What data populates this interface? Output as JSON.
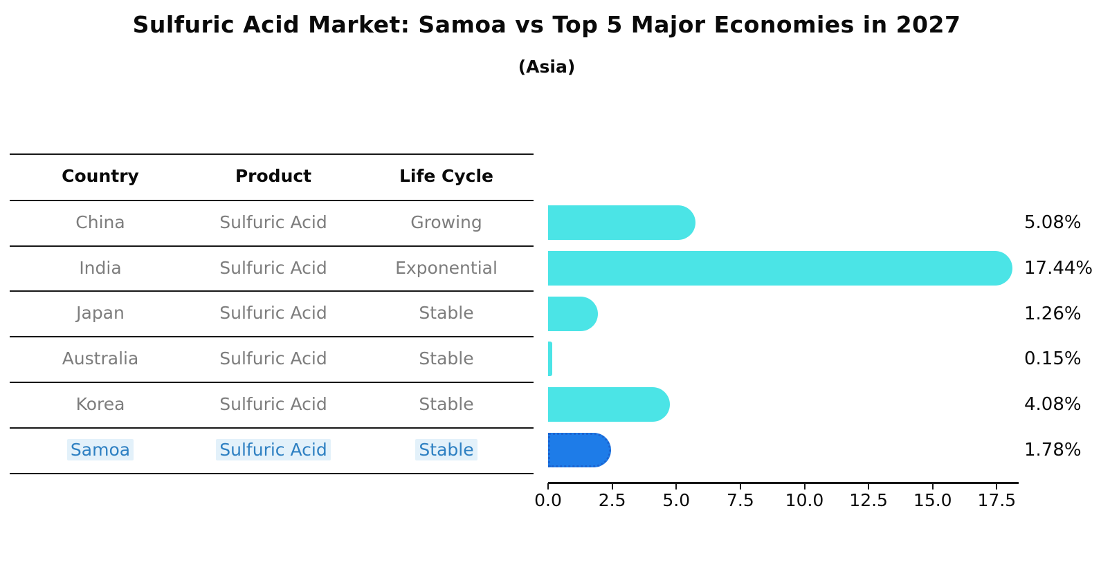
{
  "title": "Sulfuric Acid Market: Samoa vs Top 5 Major Economies in 2027",
  "subtitle": "(Asia)",
  "table": {
    "headers": [
      "Country",
      "Product",
      "Life Cycle"
    ],
    "rows": [
      {
        "country": "China",
        "product": "Sulfuric Acid",
        "life_cycle": "Growing",
        "highlighted": false
      },
      {
        "country": "India",
        "product": "Sulfuric Acid",
        "life_cycle": "Exponential",
        "highlighted": false
      },
      {
        "country": "Japan",
        "product": "Sulfuric Acid",
        "life_cycle": "Stable",
        "highlighted": false
      },
      {
        "country": "Australia",
        "product": "Sulfuric Acid",
        "life_cycle": "Stable",
        "highlighted": false
      },
      {
        "country": "Korea",
        "product": "Sulfuric Acid",
        "life_cycle": "Stable",
        "highlighted": false
      },
      {
        "country": "Samoa",
        "product": "Sulfuric Acid",
        "life_cycle": "Stable",
        "highlighted": true
      }
    ]
  },
  "chart_data": {
    "type": "bar",
    "orientation": "horizontal",
    "title": "Sulfuric Acid Market: Samoa vs Top 5 Major Economies in 2027",
    "subtitle": "(Asia)",
    "categories": [
      "China",
      "India",
      "Japan",
      "Australia",
      "Korea",
      "Samoa"
    ],
    "values": [
      5.08,
      17.44,
      1.26,
      0.15,
      4.08,
      1.78
    ],
    "value_labels": [
      "5.08%",
      "17.44%",
      "1.26%",
      "0.15%",
      "4.08%",
      "1.78%"
    ],
    "x_ticks": [
      "0.0",
      "2.5",
      "5.0",
      "7.5",
      "10.0",
      "12.5",
      "15.0",
      "17.5"
    ],
    "x_tick_values": [
      0,
      2.5,
      5,
      7.5,
      10,
      12.5,
      15,
      17.5
    ],
    "xlim": [
      0,
      18.4
    ],
    "grid": false,
    "legend": false,
    "bar_color": "#4be4e6",
    "highlight_bar_color": "#1e7ce8",
    "highlight_border_color": "#1c64d0",
    "highlight_index": 5,
    "highlight_text_color": "#2e80c2",
    "body_text_color": "#7d7d7d"
  }
}
